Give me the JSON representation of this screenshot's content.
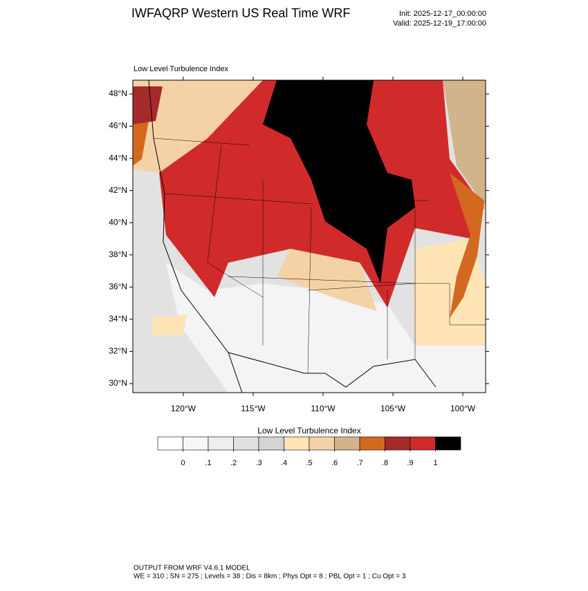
{
  "header": {
    "title": "IWFAQRP Western US Real Time WRF",
    "init": "Init: 2025-12-17_00:00:00",
    "valid": "Valid: 2025-12-19_17:00:00"
  },
  "map": {
    "title": "Low Level Turbulence Index",
    "lat_range": [
      29.44,
      48.86
    ],
    "lon_range": [
      -123.61,
      -98.37
    ],
    "lat_ticks": [
      {
        "value": 30,
        "label": "30°N"
      },
      {
        "value": 32,
        "label": "32°N"
      },
      {
        "value": 34,
        "label": "34°N"
      },
      {
        "value": 36,
        "label": "36°N"
      },
      {
        "value": 38,
        "label": "38°N"
      },
      {
        "value": 40,
        "label": "40°N"
      },
      {
        "value": 42,
        "label": "42°N"
      },
      {
        "value": 44,
        "label": "44°N"
      },
      {
        "value": 46,
        "label": "46°N"
      },
      {
        "value": 48,
        "label": "48°N"
      }
    ],
    "lon_ticks": [
      {
        "value": -120,
        "label": "120°W"
      },
      {
        "value": -115,
        "label": "115°W"
      },
      {
        "value": -110,
        "label": "110°W"
      },
      {
        "value": -105,
        "label": "105°W"
      },
      {
        "value": -100,
        "label": "100°W"
      }
    ]
  },
  "colorbar": {
    "title": "Low Level Turbulence Index",
    "colors": [
      "#ffffff",
      "#f7f7f7",
      "#eeeeee",
      "#e0e0e0",
      "#d4d4d4",
      "#ffe4b5",
      "#f5d2a6",
      "#d2b48c",
      "#d2691e",
      "#a52a2a",
      "#d12a2a",
      "#000000"
    ],
    "ticks": [
      0,
      {
        "value": 0.1,
        "label": ".1"
      },
      {
        "value": 0.2,
        "label": ".2"
      },
      {
        "value": 0.3,
        "label": ".3"
      },
      {
        "value": 0.4,
        "label": ".4"
      },
      {
        "value": 0.5,
        "label": ".5"
      },
      {
        "value": 0.6,
        "label": ".6"
      },
      {
        "value": 0.7,
        "label": ".7"
      },
      {
        "value": 0.8,
        "label": ".8"
      },
      {
        "value": 0.9,
        "label": ".9"
      },
      1
    ]
  },
  "footer": {
    "line1": "OUTPUT FROM WRF V4.6.1 MODEL",
    "line2": "WE = 310 ; SN = 275 ; Levels = 38 ; Dis = 8km ; Phys Opt = 8 ; PBL Opt = 1 ; Cu Opt = 3"
  }
}
